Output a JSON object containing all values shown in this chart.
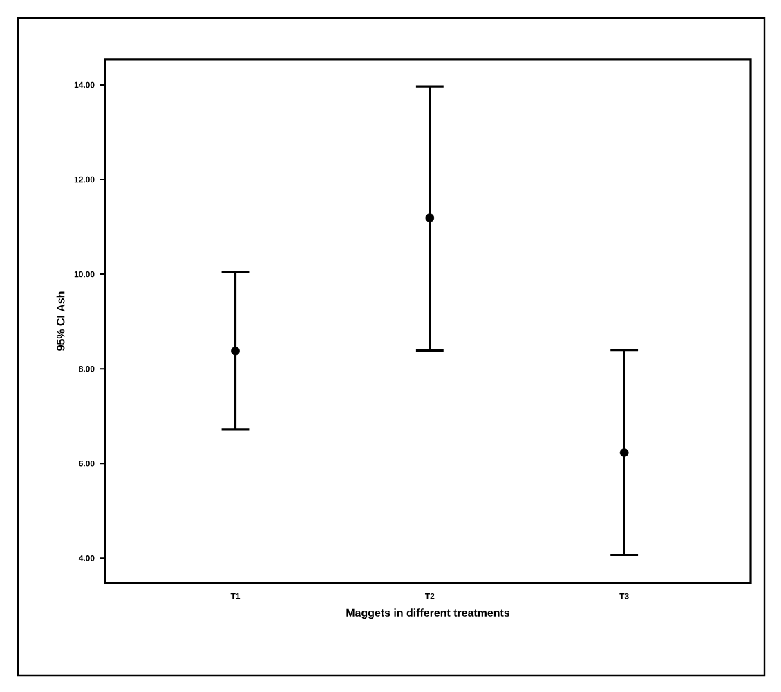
{
  "chart_data": {
    "type": "scatter",
    "xlabel": "Maggets in different treatments",
    "ylabel": "95% CI Ash",
    "categories": [
      "T1",
      "T2",
      "T3"
    ],
    "values": [
      8.38,
      11.19,
      6.23
    ],
    "errors": [
      [
        6.72,
        10.05
      ],
      [
        8.39,
        13.97
      ],
      [
        4.07,
        8.4
      ]
    ],
    "color": "#000000",
    "ylim": [
      3.48,
      14.54
    ],
    "yticks": [
      {
        "value": 4,
        "label": "4.00"
      },
      {
        "value": 6,
        "label": "6.00"
      },
      {
        "value": 8,
        "label": "8.00"
      },
      {
        "value": 10,
        "label": "10.00"
      },
      {
        "value": 12,
        "label": "12.00"
      },
      {
        "value": 14,
        "label": "14.00"
      }
    ]
  }
}
